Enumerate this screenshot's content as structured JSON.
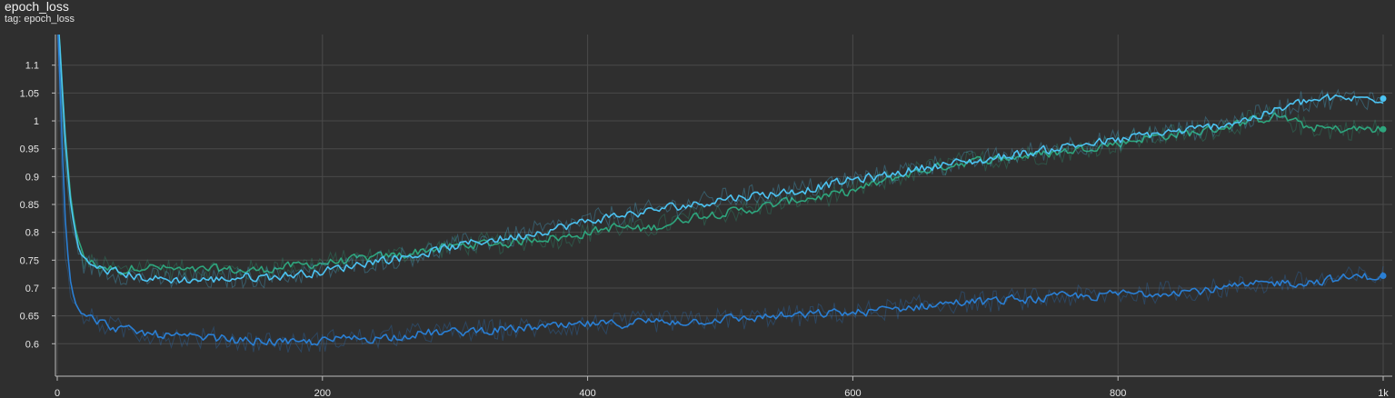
{
  "card": {
    "title": "epoch_loss",
    "tag": "tag: epoch_loss"
  },
  "chart_data": {
    "type": "line",
    "title": "epoch_loss",
    "xlabel": "",
    "ylabel": "",
    "xlim": [
      0,
      1000
    ],
    "ylim": [
      0.545,
      1.155
    ],
    "x_ticks": [
      0,
      200,
      400,
      600,
      800,
      1000
    ],
    "x_tick_labels": [
      "0",
      "200",
      "400",
      "600",
      "800",
      "1k"
    ],
    "y_ticks": [
      0.6,
      0.65,
      0.7,
      0.75,
      0.8,
      0.85,
      0.9,
      0.95,
      1,
      1.05,
      1.1
    ],
    "y_tick_labels": [
      "0.6",
      "0.65",
      "0.7",
      "0.75",
      "0.8",
      "0.85",
      "0.9",
      "0.95",
      "1",
      "1.05",
      "1.1"
    ],
    "grid": true,
    "legend": "none",
    "series": [
      {
        "color": "#2ea57d",
        "x": [
          0,
          3,
          6,
          10,
          15,
          20,
          30,
          40,
          50,
          60,
          80,
          100,
          120,
          140,
          160,
          180,
          200,
          220,
          240,
          260,
          280,
          300,
          320,
          340,
          360,
          380,
          400,
          420,
          440,
          460,
          480,
          500,
          520,
          540,
          560,
          580,
          600,
          620,
          640,
          660,
          680,
          700,
          720,
          740,
          760,
          780,
          800,
          820,
          840,
          860,
          880,
          900,
          920,
          940,
          960,
          980,
          1000
        ],
        "y": [
          1.2,
          1.05,
          0.93,
          0.84,
          0.78,
          0.75,
          0.74,
          0.735,
          0.73,
          0.74,
          0.735,
          0.73,
          0.735,
          0.73,
          0.735,
          0.74,
          0.745,
          0.75,
          0.755,
          0.76,
          0.77,
          0.775,
          0.78,
          0.78,
          0.79,
          0.79,
          0.8,
          0.81,
          0.805,
          0.815,
          0.83,
          0.835,
          0.84,
          0.85,
          0.86,
          0.865,
          0.875,
          0.89,
          0.905,
          0.915,
          0.925,
          0.93,
          0.935,
          0.94,
          0.945,
          0.955,
          0.96,
          0.97,
          0.975,
          0.98,
          0.99,
          1.0,
          1.01,
          0.99,
          0.985,
          0.985,
          0.985
        ]
      },
      {
        "color": "#4cc3f2",
        "x": [
          0,
          3,
          6,
          10,
          15,
          20,
          30,
          40,
          50,
          60,
          80,
          100,
          120,
          140,
          160,
          180,
          200,
          220,
          240,
          260,
          280,
          300,
          320,
          340,
          360,
          380,
          400,
          420,
          440,
          460,
          480,
          500,
          520,
          540,
          560,
          580,
          600,
          620,
          640,
          660,
          680,
          700,
          720,
          740,
          760,
          780,
          800,
          820,
          840,
          860,
          880,
          900,
          920,
          940,
          960,
          980,
          1000
        ],
        "y": [
          1.2,
          1.04,
          0.92,
          0.83,
          0.77,
          0.745,
          0.735,
          0.73,
          0.725,
          0.72,
          0.715,
          0.715,
          0.715,
          0.72,
          0.72,
          0.725,
          0.73,
          0.74,
          0.75,
          0.755,
          0.765,
          0.775,
          0.785,
          0.79,
          0.8,
          0.81,
          0.82,
          0.83,
          0.835,
          0.845,
          0.85,
          0.86,
          0.865,
          0.87,
          0.875,
          0.885,
          0.895,
          0.9,
          0.91,
          0.92,
          0.925,
          0.93,
          0.94,
          0.945,
          0.955,
          0.96,
          0.965,
          0.975,
          0.98,
          0.985,
          0.995,
          1.005,
          1.02,
          1.035,
          1.04,
          1.04,
          1.04
        ]
      },
      {
        "color": "#2a7fd4",
        "x": [
          0,
          3,
          6,
          10,
          15,
          20,
          30,
          40,
          50,
          60,
          80,
          100,
          120,
          140,
          160,
          180,
          200,
          220,
          240,
          260,
          280,
          300,
          320,
          340,
          360,
          380,
          400,
          420,
          440,
          460,
          480,
          500,
          520,
          540,
          560,
          580,
          600,
          620,
          640,
          660,
          680,
          700,
          720,
          740,
          760,
          780,
          800,
          820,
          840,
          860,
          880,
          900,
          920,
          940,
          960,
          980,
          1000
        ],
        "y": [
          1.2,
          0.92,
          0.76,
          0.69,
          0.66,
          0.65,
          0.64,
          0.63,
          0.625,
          0.62,
          0.615,
          0.61,
          0.61,
          0.605,
          0.605,
          0.6,
          0.605,
          0.61,
          0.61,
          0.615,
          0.62,
          0.62,
          0.625,
          0.625,
          0.63,
          0.63,
          0.635,
          0.635,
          0.64,
          0.64,
          0.64,
          0.645,
          0.645,
          0.65,
          0.65,
          0.655,
          0.655,
          0.66,
          0.665,
          0.67,
          0.675,
          0.675,
          0.68,
          0.68,
          0.685,
          0.685,
          0.69,
          0.69,
          0.695,
          0.695,
          0.7,
          0.705,
          0.71,
          0.71,
          0.715,
          0.72,
          0.722
        ]
      }
    ]
  }
}
